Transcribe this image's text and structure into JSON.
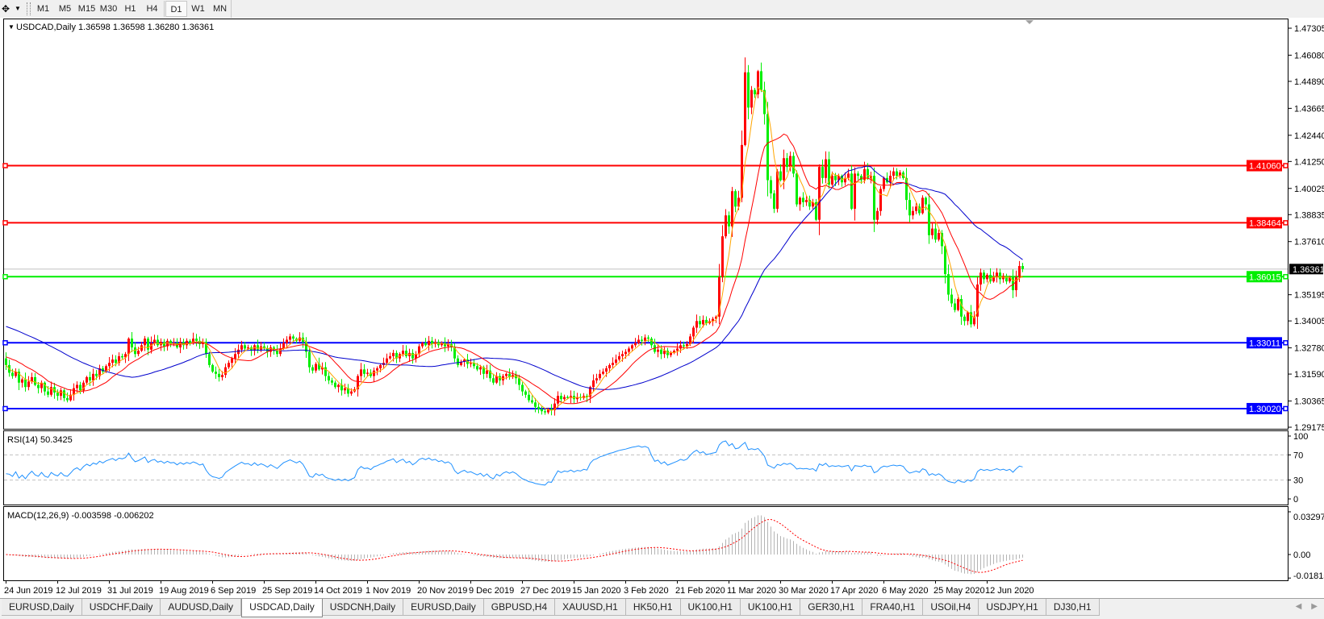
{
  "toolbar": {
    "tool_icon": "crosshair-tool-icon",
    "timeframes": [
      "M1",
      "M5",
      "M15",
      "M30",
      "H1",
      "H4",
      "D1",
      "W1",
      "MN"
    ],
    "active_timeframe": "D1"
  },
  "chart_data": {
    "type": "candlestick",
    "header": "USDCAD,Daily  1.36598 1.36598 1.36280 1.36361",
    "ylim": [
      1.29175,
      1.47305
    ],
    "price_ticks": [
      "1.47305",
      "1.46080",
      "1.44890",
      "1.43665",
      "1.42440",
      "1.41250",
      "1.40025",
      "1.38835",
      "1.37610",
      "1.35195",
      "1.34005",
      "1.32780",
      "1.31590",
      "1.30365",
      "1.29175"
    ],
    "date_labels": [
      "24 Jun 2019",
      "12 Jul 2019",
      "31 Jul 2019",
      "19 Aug 2019",
      "6 Sep 2019",
      "25 Sep 2019",
      "14 Oct 2019",
      "1 Nov 2019",
      "20 Nov 2019",
      "9 Dec 2019",
      "27 Dec 2019",
      "15 Jan 2020",
      "3 Feb 2020",
      "21 Feb 2020",
      "11 Mar 2020",
      "30 Mar 2020",
      "17 Apr 2020",
      "6 May 2020",
      "25 May 2020",
      "12 Jun 2020"
    ],
    "colors": {
      "bull": "#ff0000",
      "bear": "#00ee00",
      "ma_fast": "#ffa500",
      "ma_mid": "#ff0000",
      "ma_slow": "#0000cd"
    },
    "current_price": {
      "value": 1.36361,
      "label": "1.36361",
      "color": "#000000"
    },
    "horizontal_lines": [
      {
        "value": 1.4106,
        "label": "1.41060",
        "color": "#ff0000"
      },
      {
        "value": 1.38464,
        "label": "1.38464",
        "color": "#ff0000"
      },
      {
        "value": 1.36015,
        "label": "1.36015",
        "color": "#00ee00"
      },
      {
        "value": 1.33011,
        "label": "1.33011",
        "color": "#0000ff"
      },
      {
        "value": 1.3002,
        "label": "1.30020",
        "color": "#0000ff"
      }
    ],
    "closes": [
      1.32,
      1.3165,
      1.315,
      1.317,
      1.312,
      1.3135,
      1.31,
      1.3125,
      1.3145,
      1.311,
      1.3095,
      1.312,
      1.308,
      1.3065,
      1.31,
      1.3075,
      1.306,
      1.3085,
      1.305,
      1.304,
      1.3065,
      1.3095,
      1.311,
      1.3085,
      1.312,
      1.3145,
      1.313,
      1.316,
      1.315,
      1.3185,
      1.317,
      1.3195,
      1.321,
      1.3225,
      1.321,
      1.324,
      1.3235,
      1.325,
      1.332,
      1.328,
      1.325,
      1.3265,
      1.329,
      1.332,
      1.327,
      1.33,
      1.3315,
      1.329,
      1.3305,
      1.3285,
      1.331,
      1.3295,
      1.33,
      1.328,
      1.3305,
      1.329,
      1.331,
      1.33,
      1.332,
      1.331,
      1.3295,
      1.3305,
      1.325,
      1.32,
      1.317,
      1.316,
      1.3145,
      1.3155,
      1.319,
      1.321,
      1.323,
      1.325,
      1.327,
      1.329,
      1.3275,
      1.328,
      1.3265,
      1.329,
      1.327,
      1.3285,
      1.3275,
      1.326,
      1.328,
      1.3265,
      1.325,
      1.3275,
      1.33,
      1.3315,
      1.333,
      1.332,
      1.331,
      1.3325,
      1.3305,
      1.326,
      1.319,
      1.3175,
      1.3205,
      1.318,
      1.319,
      1.315,
      1.313,
      1.312,
      1.31,
      1.311,
      1.3085,
      1.3095,
      1.307,
      1.308,
      1.309,
      1.315,
      1.318,
      1.316,
      1.3165,
      1.315,
      1.3175,
      1.3185,
      1.32,
      1.321,
      1.323,
      1.324,
      1.3255,
      1.323,
      1.325,
      1.3265,
      1.324,
      1.3255,
      1.323,
      1.325,
      1.3285,
      1.33,
      1.329,
      1.331,
      1.3295,
      1.3305,
      1.329,
      1.33,
      1.3285,
      1.3295,
      1.328,
      1.323,
      1.32,
      1.3215,
      1.3225,
      1.3205,
      1.321,
      1.3195,
      1.318,
      1.319,
      1.316,
      1.3175,
      1.314,
      1.312,
      1.315,
      1.313,
      1.315,
      1.316,
      1.3145,
      1.3155,
      1.314,
      1.311,
      1.308,
      1.3065,
      1.304,
      1.303,
      1.301,
      1.3,
      1.299,
      1.2985,
      1.3,
      1.2995,
      1.3025,
      1.306,
      1.3045,
      1.3055,
      1.305,
      1.306,
      1.3045,
      1.3055,
      1.305,
      1.306,
      1.3055,
      1.31,
      1.313,
      1.314,
      1.316,
      1.317,
      1.3185,
      1.32,
      1.321,
      1.3225,
      1.324,
      1.325,
      1.326,
      1.3275,
      1.329,
      1.33,
      1.3315,
      1.331,
      1.3325,
      1.332,
      1.329,
      1.326,
      1.327,
      1.325,
      1.3265,
      1.3245,
      1.3255,
      1.3265,
      1.3275,
      1.329,
      1.3285,
      1.3295,
      1.333,
      1.337,
      1.34,
      1.3385,
      1.3405,
      1.339,
      1.34,
      1.341,
      1.342,
      1.36,
      1.3785,
      1.388,
      1.383,
      1.399,
      1.392,
      1.396,
      1.42,
      1.453,
      1.437,
      1.445,
      1.443,
      1.4535,
      1.445,
      1.434,
      1.404,
      1.398,
      1.391,
      1.408,
      1.404,
      1.414,
      1.41,
      1.415,
      1.407,
      1.393,
      1.396,
      1.394,
      1.395,
      1.392,
      1.394,
      1.386,
      1.41,
      1.405,
      1.4135,
      1.402,
      1.406,
      1.404,
      1.406,
      1.403,
      1.405,
      1.407,
      1.391,
      1.407,
      1.406,
      1.404,
      1.409,
      1.405,
      1.406,
      1.386,
      1.39,
      1.4,
      1.405,
      1.403,
      1.406,
      1.408,
      1.406,
      1.4075,
      1.405,
      1.395,
      1.388,
      1.39,
      1.392,
      1.389,
      1.396,
      1.393,
      1.379,
      1.382,
      1.377,
      1.38,
      1.374,
      1.3613,
      1.352,
      1.348,
      1.345,
      1.35,
      1.342,
      1.34,
      1.344,
      1.3385,
      1.342,
      1.3566,
      1.362,
      1.359,
      1.361,
      1.358,
      1.36,
      1.362,
      1.359,
      1.3605,
      1.358,
      1.36,
      1.354,
      1.36,
      1.365,
      1.3636
    ],
    "rsi": {
      "header": "RSI(14) 50.3425",
      "ticks": [
        "100",
        "70",
        "30",
        "0"
      ],
      "levels": [
        70,
        30
      ],
      "color": "#1e90ff"
    },
    "macd": {
      "header": "MACD(12,26,9) -0.003598 -0.006202",
      "ticks": [
        "0.032972",
        "0.00",
        "-0.018154"
      ],
      "ylim": [
        -0.018154,
        0.032972
      ],
      "histogram_color": "#b4b4b4",
      "signal_color": "#ff0000"
    }
  },
  "tabs": [
    "EURUSD,Daily",
    "USDCHF,Daily",
    "AUDUSD,Daily",
    "USDCAD,Daily",
    "USDCNH,Daily",
    "EURUSD,Daily",
    "GBPUSD,H4",
    "XAUUSD,H1",
    "HK50,H1",
    "UK100,H1",
    "UK100,H1",
    "GER30,H1",
    "FRA40,H1",
    "USOil,H4",
    "USDJPY,H1",
    "DJ30,H1"
  ],
  "active_tab": 3,
  "tab_scroll": {
    "left_icon": "scroll-left-icon",
    "right_icon": "scroll-right-icon"
  }
}
